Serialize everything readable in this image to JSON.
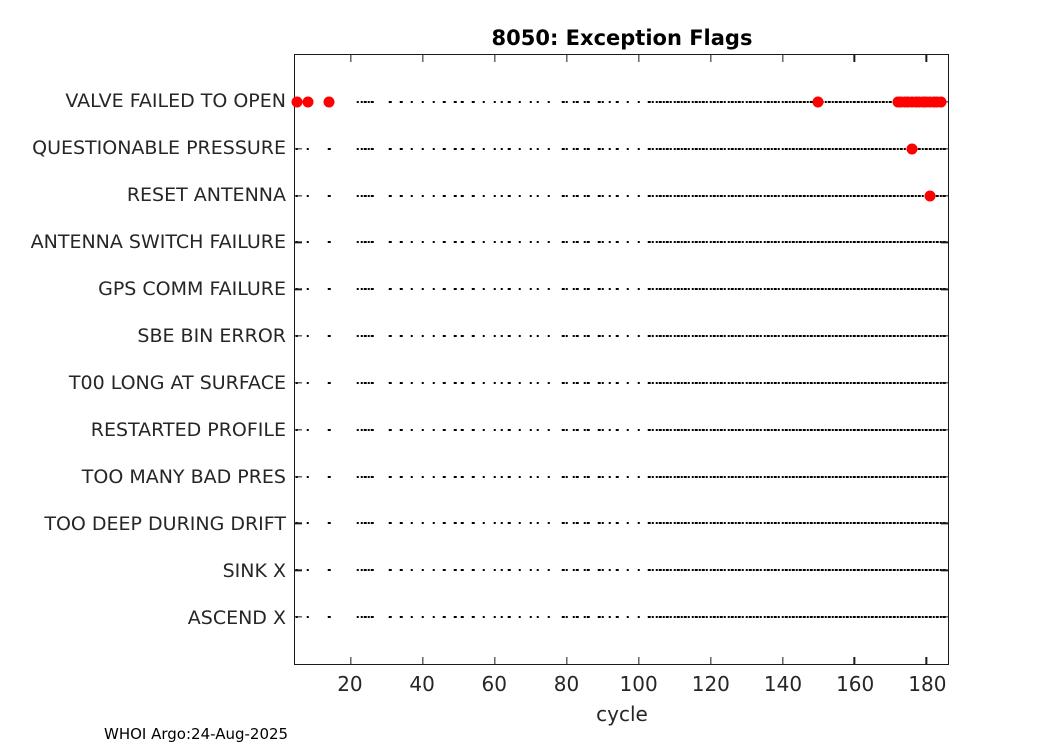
{
  "chart_data": {
    "type": "scatter",
    "title": "8050: Exception Flags",
    "xlabel": "cycle",
    "footer": "WHOI Argo:24-Aug-2025",
    "xlim": [
      4.5,
      186
    ],
    "xticks": [
      20,
      40,
      60,
      80,
      100,
      120,
      140,
      160,
      180
    ],
    "grid_on": false,
    "legend": "none",
    "categories": [
      "VALVE FAILED TO OPEN",
      "QUESTIONABLE PRESSURE",
      "RESET ANTENNA",
      "ANTENNA SWITCH FAILURE",
      "GPS COMM FAILURE",
      "SBE BIN ERROR",
      "T00 LONG AT SURFACE",
      "RESTARTED PROFILE",
      "TOO MANY BAD PRES",
      "TOO DEEP DURING DRIFT",
      "SINK X",
      "ASCEND X"
    ],
    "flag_marker_color": "#ff0000",
    "grid_dot_color": "#000000",
    "grid_dot_cycles_sparse": [
      5,
      8,
      14,
      22,
      23,
      24,
      25,
      26,
      31,
      34,
      37,
      40,
      43,
      46,
      49,
      51,
      54,
      57,
      60,
      62,
      64,
      67,
      70,
      72,
      75,
      79,
      80,
      82,
      83,
      85,
      86,
      89,
      90,
      92,
      94,
      97,
      100
    ],
    "grid_dot_dense_range": [
      103,
      185
    ],
    "series": [
      {
        "name": "VALVE FAILED TO OPEN",
        "flagged_cycles": [
          5,
          8,
          14,
          150,
          172,
          173,
          174,
          175,
          176,
          177,
          178,
          179,
          180,
          181,
          182,
          183,
          184
        ]
      },
      {
        "name": "QUESTIONABLE PRESSURE",
        "flagged_cycles": [
          176
        ]
      },
      {
        "name": "RESET ANTENNA",
        "flagged_cycles": [
          181
        ]
      },
      {
        "name": "ANTENNA SWITCH FAILURE",
        "flagged_cycles": []
      },
      {
        "name": "GPS COMM FAILURE",
        "flagged_cycles": []
      },
      {
        "name": "SBE BIN ERROR",
        "flagged_cycles": []
      },
      {
        "name": "T00 LONG AT SURFACE",
        "flagged_cycles": []
      },
      {
        "name": "RESTARTED PROFILE",
        "flagged_cycles": []
      },
      {
        "name": "TOO MANY BAD PRES",
        "flagged_cycles": []
      },
      {
        "name": "TOO DEEP DURING DRIFT",
        "flagged_cycles": []
      },
      {
        "name": "SINK X",
        "flagged_cycles": []
      },
      {
        "name": "ASCEND X",
        "flagged_cycles": []
      }
    ]
  }
}
